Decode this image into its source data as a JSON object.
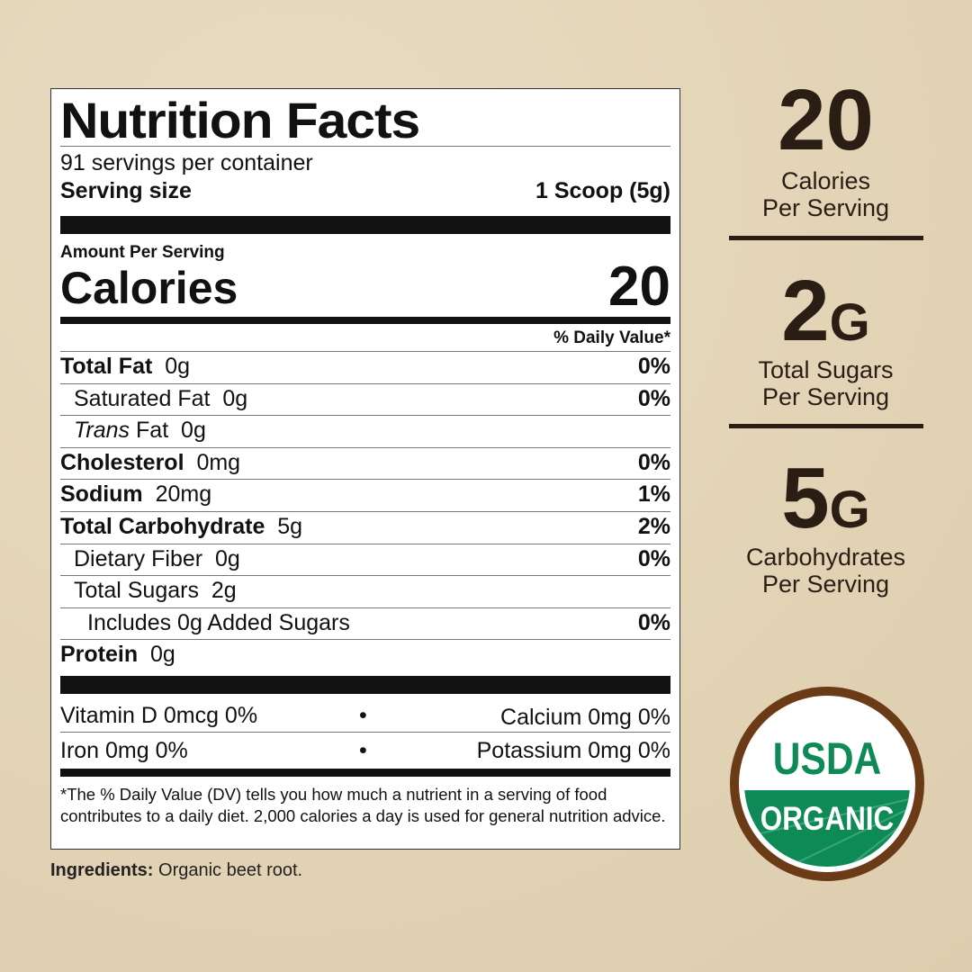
{
  "label": {
    "title": "Nutrition Facts",
    "servings": "91 servings per container",
    "serving_size_label": "Serving size",
    "serving_size_value": "1 Scoop (5g)",
    "amount_per_serving": "Amount Per Serving",
    "calories_label": "Calories",
    "calories_value": "20",
    "dv_header": "% Daily Value*",
    "rows": [
      {
        "name": "Total Fat",
        "amount": "0g",
        "dv": "0%"
      },
      {
        "name": "Saturated Fat",
        "amount": "0g",
        "dv": "0%"
      },
      {
        "name": "Trans",
        "name2": "Fat",
        "amount": "0g",
        "dv": ""
      },
      {
        "name": "Cholesterol",
        "amount": "0mg",
        "dv": "0%"
      },
      {
        "name": "Sodium",
        "amount": "20mg",
        "dv": "1%"
      },
      {
        "name": "Total Carbohydrate",
        "amount": "5g",
        "dv": "2%"
      },
      {
        "name": "Dietary Fiber",
        "amount": "0g",
        "dv": "0%"
      },
      {
        "name": "Total Sugars",
        "amount": "2g",
        "dv": ""
      },
      {
        "name": "Includes 0g Added Sugars",
        "amount": "",
        "dv": "0%"
      },
      {
        "name": "Protein",
        "amount": "0g",
        "dv": ""
      }
    ],
    "vitamins": [
      {
        "left": "Vitamin D  0mcg  0%",
        "right": "Calcium  0mg  0%"
      },
      {
        "left": "Iron  0mg  0%",
        "right": "Potassium  0mg  0%"
      }
    ],
    "bullet": "•",
    "footnote": "*The % Daily Value (DV) tells you how much a nutrient in a serving of food contributes to a daily diet.  2,000 calories a day is used for general nutrition advice."
  },
  "ingredients": {
    "label": "Ingredients:",
    "value": " Organic beet root."
  },
  "highlights": [
    {
      "value": "20",
      "unit": "",
      "line1": "Calories",
      "line2": "Per Serving"
    },
    {
      "value": "2",
      "unit": "G",
      "line1": "Total Sugars",
      "line2": "Per Serving"
    },
    {
      "value": "5",
      "unit": "G",
      "line1": "Carbohydrates",
      "line2": "Per Serving"
    }
  ],
  "badge": {
    "top": "USDA",
    "bottom": "ORGANIC",
    "green": "#0d8a56",
    "ring": "#6b3a17"
  },
  "colors": {
    "background": "#e4d6b9",
    "highlight_text": "#2a1e14"
  }
}
